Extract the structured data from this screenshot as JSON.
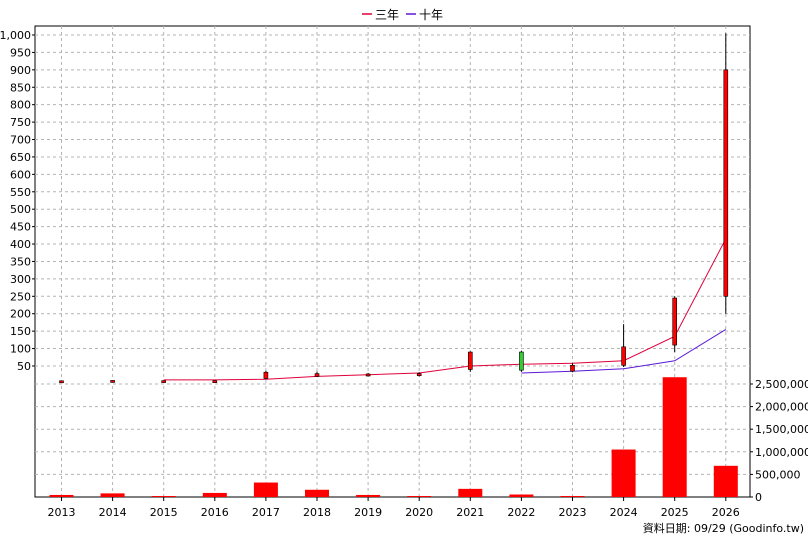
{
  "chart_data": [
    {
      "type": "candlestick",
      "title": "",
      "legend": {
        "position": "top-center",
        "entries": [
          {
            "name": "三年",
            "color": "#e0003c"
          },
          {
            "name": "十年",
            "color": "#5a1ad6"
          }
        ]
      },
      "x": [
        "2013",
        "2014",
        "2015",
        "2016",
        "2017",
        "2018",
        "2019",
        "2020",
        "2021",
        "2022",
        "2023",
        "2024",
        "2025",
        "2026"
      ],
      "yticks": [
        "50",
        "100",
        "150",
        "200",
        "250",
        "300",
        "350",
        "400",
        "450",
        "500",
        "550",
        "600",
        "650",
        "700",
        "750",
        "800",
        "850",
        "900",
        "950",
        "1,000"
      ],
      "ylim": [
        0,
        1000
      ],
      "candles": [
        {
          "year": "2013",
          "open": 7,
          "high": 8,
          "low": 6,
          "close": 7.5,
          "color": "#ff0000"
        },
        {
          "year": "2014",
          "open": 7.5,
          "high": 9,
          "low": 7,
          "close": 8.5,
          "color": "#ff0000"
        },
        {
          "year": "2015",
          "open": 8,
          "high": 8,
          "low": 7,
          "close": 7.5,
          "color": "#ff0000"
        },
        {
          "year": "2016",
          "open": 7,
          "high": 8.5,
          "low": 6.5,
          "close": 7.8,
          "color": "#ff0000"
        },
        {
          "year": "2017",
          "open": 14,
          "high": 36,
          "low": 12,
          "close": 32,
          "color": "#ff0000"
        },
        {
          "year": "2018",
          "open": 20,
          "high": 34,
          "low": 18,
          "close": 28,
          "color": "#ff0000"
        },
        {
          "year": "2019",
          "open": 22,
          "high": 30,
          "low": 20,
          "close": 27,
          "color": "#ff0000"
        },
        {
          "year": "2020",
          "open": 24,
          "high": 32,
          "low": 20,
          "close": 28,
          "color": "#ff0000"
        },
        {
          "year": "2021",
          "open": 40,
          "high": 92,
          "low": 33,
          "close": 90,
          "color": "#ff0000"
        },
        {
          "year": "2022",
          "open": 90,
          "high": 93,
          "low": 33,
          "close": 38,
          "color": "#33cc33"
        },
        {
          "year": "2023",
          "open": 35,
          "high": 58,
          "low": 32,
          "close": 52,
          "color": "#ff0000"
        },
        {
          "year": "2024",
          "open": 52,
          "high": 170,
          "low": 47,
          "close": 105,
          "color": "#ff0000"
        },
        {
          "year": "2025",
          "open": 110,
          "high": 250,
          "low": 90,
          "close": 245,
          "color": "#ff0000"
        },
        {
          "year": "2026",
          "open": 250,
          "high": 1005,
          "low": 200,
          "close": 900,
          "color": "#ff0000"
        }
      ],
      "series": [
        {
          "name": "三年",
          "color": "#e0003c",
          "values": [
            null,
            null,
            10,
            10,
            12,
            20,
            25,
            30,
            50,
            55,
            58,
            65,
            135,
            415
          ]
        },
        {
          "name": "十年",
          "color": "#5a1ad6",
          "values": [
            null,
            null,
            null,
            null,
            null,
            null,
            null,
            null,
            null,
            30,
            35,
            42,
            65,
            155
          ]
        }
      ]
    },
    {
      "type": "bar",
      "y2ticks": [
        "0",
        "500,000",
        "1,000,000",
        "1,500,000",
        "2,000,000",
        "2,500,000"
      ],
      "ylim": [
        0,
        2600000
      ],
      "x": [
        "2013",
        "2014",
        "2015",
        "2016",
        "2017",
        "2018",
        "2019",
        "2020",
        "2021",
        "2022",
        "2023",
        "2024",
        "2025",
        "2026"
      ],
      "values": [
        45000,
        80000,
        12000,
        90000,
        320000,
        160000,
        45000,
        20000,
        180000,
        55000,
        8000,
        1050000,
        2650000,
        690000
      ],
      "color": "#ff0000"
    }
  ],
  "footer": {
    "source": "資料日期: 09/29  (Goodinfo.tw)"
  }
}
